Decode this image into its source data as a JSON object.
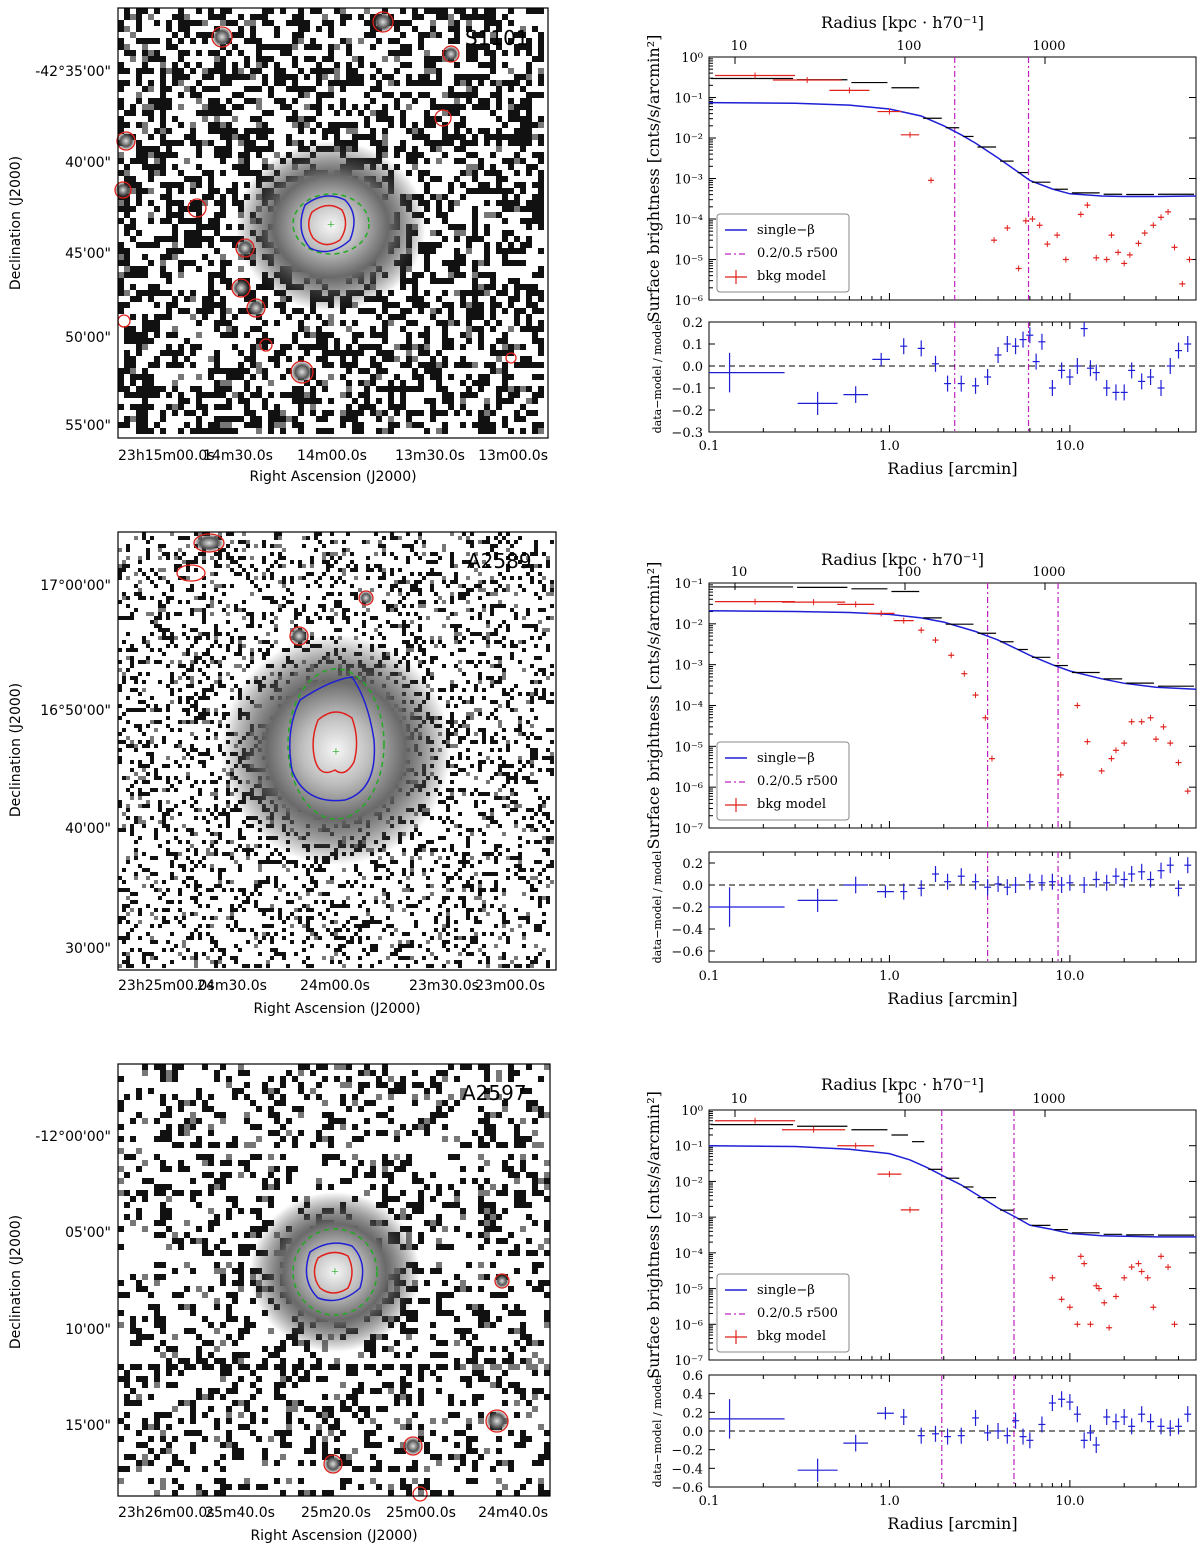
{
  "panels": [
    {
      "image": {
        "label": "S1101",
        "xlabel": "Right Ascension (J2000)",
        "ylabel": "Declination (J2000)",
        "xticks": [
          "23h15m00.0s",
          "14m30.0s",
          "14m00.0s",
          "13m30.0s",
          "13m00.0s"
        ],
        "yticks": [
          "-42°35'00\"",
          "40'00\"",
          "45'00\"",
          "50'00\"",
          "55'00\""
        ]
      },
      "profile": {
        "top_xlabel": "Radius [kpc · h70⁻¹]",
        "top_ticks": [
          "10",
          "100",
          "1000"
        ],
        "ylabel": "Surface brightness [cnts/s/arcmin²]",
        "yticks": [
          "10⁰",
          "10⁻¹",
          "10⁻²",
          "10⁻³",
          "10⁻⁴",
          "10⁻⁵",
          "10⁻⁶"
        ],
        "legend": [
          "single−β",
          "0.2/0.5 r500",
          "bkg model"
        ]
      },
      "residual": {
        "ylabel": "data−model / model",
        "xlabel": "Radius [arcmin]",
        "xticks": [
          "0.1",
          "1.0",
          "10.0"
        ],
        "yticks": [
          "0.2",
          "0.1",
          "0.0",
          "−0.1",
          "−0.2",
          "−0.3"
        ]
      }
    },
    {
      "image": {
        "label": "A2589",
        "xlabel": "Right Ascension (J2000)",
        "ylabel": "Declination (J2000)",
        "xticks": [
          "23h25m00.0s",
          "24m30.0s",
          "24m00.0s",
          "23m30.0s",
          "23m00.0s"
        ],
        "yticks": [
          "17°00'00\"",
          "16°50'00\"",
          "40'00\"",
          "30'00\""
        ]
      },
      "profile": {
        "top_xlabel": "Radius [kpc · h70⁻¹]",
        "top_ticks": [
          "10",
          "100",
          "1000"
        ],
        "ylabel": "Surface brightness [cnts/s/arcmin²]",
        "yticks": [
          "10⁻¹",
          "10⁻²",
          "10⁻³",
          "10⁻⁴",
          "10⁻⁵",
          "10⁻⁶",
          "10⁻⁷"
        ],
        "legend": [
          "single−β",
          "0.2/0.5 r500",
          "bkg model"
        ]
      },
      "residual": {
        "ylabel": "data−model / model",
        "xlabel": "Radius [arcmin]",
        "xticks": [
          "0.1",
          "1.0",
          "10.0"
        ],
        "yticks": [
          "0.2",
          "0.0",
          "−0.2",
          "−0.4",
          "−0.6"
        ]
      }
    },
    {
      "image": {
        "label": "A2597",
        "xlabel": "Right Ascension (J2000)",
        "ylabel": "Declination (J2000)",
        "xticks": [
          "23h26m00.0s",
          "25m40.0s",
          "25m20.0s",
          "25m00.0s",
          "24m40.0s"
        ],
        "yticks": [
          "-12°00'00\"",
          "05'00\"",
          "10'00\"",
          "15'00\""
        ]
      },
      "profile": {
        "top_xlabel": "Radius [kpc · h70⁻¹]",
        "top_ticks": [
          "10",
          "100",
          "1000"
        ],
        "ylabel": "Surface brightness [cnts/s/arcmin²]",
        "yticks": [
          "10⁰",
          "10⁻¹",
          "10⁻²",
          "10⁻³",
          "10⁻⁴",
          "10⁻⁵",
          "10⁻⁶",
          "10⁻⁷"
        ],
        "legend": [
          "single−β",
          "0.2/0.5 r500",
          "bkg model"
        ]
      },
      "residual": {
        "ylabel": "data−model / model",
        "xlabel": "Radius [arcmin]",
        "xticks": [
          "0.1",
          "1.0",
          "10.0"
        ],
        "yticks": [
          "0.6",
          "0.4",
          "0.2",
          "0.0",
          "−0.2",
          "−0.4",
          "−0.6"
        ]
      }
    }
  ],
  "colors": {
    "model": "#1f1fd6",
    "data": "#000000",
    "background": "#e0201b",
    "r500": "#c020c0",
    "residual": "#1f1fd6",
    "contour_green": "#22aa22"
  },
  "chart_data": [
    {
      "type": "line",
      "cluster": "S1101",
      "xscale": "log",
      "yscale": "log",
      "xlim": [
        0.1,
        50
      ],
      "ylim": [
        1e-06,
        1
      ],
      "r500_lines": [
        2.3,
        5.9
      ],
      "series": [
        {
          "name": "single−β",
          "x": [
            0.1,
            0.3,
            0.6,
            1.0,
            1.5,
            2.0,
            2.5,
            3.0,
            4.0,
            5.0,
            6.0,
            8.0,
            10,
            15,
            20,
            30,
            50
          ],
          "y": [
            0.075,
            0.072,
            0.065,
            0.052,
            0.035,
            0.02,
            0.012,
            0.0075,
            0.0032,
            0.0016,
            0.0009,
            0.00055,
            0.00042,
            0.00037,
            0.00036,
            0.00036,
            0.00037
          ]
        },
        {
          "name": "bkg model",
          "x": [
            0.18,
            0.35,
            0.6,
            1.0,
            1.3,
            1.7,
            3.8,
            4.5,
            5.2,
            5.7,
            6.2,
            6.8,
            7.5,
            8.5,
            9.5,
            11.5,
            12.5,
            14,
            16,
            17,
            18.5,
            20,
            21.5,
            24,
            26,
            29,
            32,
            35,
            38,
            42,
            46
          ],
          "y": [
            0.35,
            0.27,
            0.15,
            0.045,
            0.012,
            0.0009,
            3e-05,
            6e-05,
            6e-06,
            9e-05,
            0.0001,
            7e-05,
            2.4e-05,
            4e-05,
            1e-05,
            0.00013,
            0.00022,
            1.1e-05,
            1e-05,
            4e-05,
            1.5e-05,
            8e-06,
            1.3e-05,
            2.5e-05,
            4.5e-05,
            7e-05,
            0.00011,
            0.00015,
            2e-05,
            2.5e-06,
            1e-05
          ]
        }
      ],
      "residual": {
        "x": [
          0.13,
          0.4,
          0.65,
          0.9,
          1.2,
          1.5,
          1.8,
          2.1,
          2.5,
          3.0,
          3.5,
          4.0,
          4.5,
          5.0,
          5.5,
          6.0,
          6.5,
          7.0,
          8.0,
          9.0,
          10,
          11,
          12,
          13,
          14,
          16,
          18,
          20,
          22,
          25,
          28,
          32,
          36,
          40,
          45
        ],
        "y": [
          -0.03,
          -0.17,
          -0.13,
          0.03,
          0.09,
          0.08,
          0.01,
          -0.08,
          -0.08,
          -0.09,
          -0.05,
          0.05,
          0.1,
          0.09,
          0.12,
          0.14,
          0.02,
          0.11,
          -0.1,
          -0.02,
          -0.05,
          0.0,
          0.17,
          -0.01,
          -0.03,
          -0.1,
          -0.12,
          -0.12,
          -0.02,
          -0.07,
          -0.05,
          -0.1,
          0.0,
          0.07,
          0.1
        ]
      }
    },
    {
      "type": "line",
      "cluster": "A2589",
      "xscale": "log",
      "yscale": "log",
      "xlim": [
        0.1,
        50
      ],
      "ylim": [
        1e-07,
        0.1
      ],
      "r500_lines": [
        3.5,
        8.6
      ],
      "series": [
        {
          "name": "single−β",
          "x": [
            0.1,
            0.3,
            0.6,
            1.0,
            1.5,
            2.0,
            3.0,
            4.0,
            5.0,
            6.0,
            8.0,
            10,
            15,
            20,
            30,
            50
          ],
          "y": [
            0.021,
            0.02,
            0.019,
            0.017,
            0.014,
            0.011,
            0.0065,
            0.004,
            0.0025,
            0.0017,
            0.001,
            0.0007,
            0.00045,
            0.00035,
            0.00028,
            0.00025
          ]
        },
        {
          "name": "bkg model",
          "x": [
            0.18,
            0.38,
            0.65,
            0.9,
            1.2,
            1.5,
            1.8,
            2.2,
            2.6,
            3.0,
            3.4,
            3.7,
            8.9,
            11,
            12.5,
            15,
            17,
            18,
            20,
            22,
            25,
            28,
            30,
            33,
            36,
            40,
            45
          ],
          "y": [
            0.035,
            0.034,
            0.03,
            0.018,
            0.012,
            0.007,
            0.004,
            0.0017,
            0.0006,
            0.00018,
            5e-05,
            5e-06,
            2e-06,
            0.0001,
            1.3e-05,
            2.5e-06,
            5e-06,
            8e-06,
            1.2e-05,
            4e-05,
            4e-05,
            5e-05,
            1.5e-05,
            3e-05,
            1.2e-05,
            4e-06,
            8e-07
          ]
        }
      ],
      "residual": {
        "x": [
          0.13,
          0.4,
          0.65,
          0.95,
          1.2,
          1.5,
          1.8,
          2.1,
          2.5,
          3.0,
          3.5,
          4.0,
          4.5,
          5.0,
          6.0,
          7.0,
          8.0,
          9.0,
          10,
          12,
          14,
          16,
          18,
          20,
          22,
          25,
          28,
          32,
          36,
          40,
          45
        ],
        "y": [
          -0.2,
          -0.14,
          0.0,
          -0.06,
          -0.06,
          -0.03,
          0.1,
          0.03,
          0.08,
          0.03,
          -0.02,
          0.01,
          -0.02,
          0.0,
          0.03,
          0.02,
          0.03,
          0.0,
          0.02,
          0.0,
          0.05,
          0.02,
          0.08,
          0.05,
          0.1,
          0.12,
          0.05,
          0.13,
          0.18,
          -0.03,
          0.18
        ]
      }
    },
    {
      "type": "line",
      "cluster": "A2597",
      "xscale": "log",
      "yscale": "log",
      "xlim": [
        0.1,
        50
      ],
      "ylim": [
        1e-07,
        1
      ],
      "r500_lines": [
        1.95,
        4.9
      ],
      "series": [
        {
          "name": "single−β",
          "x": [
            0.1,
            0.3,
            0.6,
            1.0,
            1.3,
            1.6,
            2.0,
            2.5,
            3.0,
            4.0,
            5.0,
            6.0,
            8.0,
            10,
            15,
            20,
            30,
            50
          ],
          "y": [
            0.1,
            0.095,
            0.08,
            0.06,
            0.04,
            0.025,
            0.014,
            0.008,
            0.0045,
            0.0018,
            0.001,
            0.0006,
            0.00045,
            0.00035,
            0.0003,
            0.00029,
            0.00028,
            0.00028
          ]
        },
        {
          "name": "bkg model",
          "x": [
            0.18,
            0.38,
            0.65,
            1.0,
            1.3,
            8.0,
            9.0,
            10,
            11,
            11.5,
            12,
            13,
            14,
            14.5,
            15.5,
            16.5,
            18,
            20,
            22,
            24,
            25,
            27,
            29,
            32,
            35,
            38
          ],
          "y": [
            0.5,
            0.28,
            0.1,
            0.016,
            0.0016,
            2e-05,
            5e-06,
            3e-06,
            1e-06,
            8e-05,
            5e-05,
            1e-06,
            1.2e-05,
            1e-05,
            4e-06,
            8e-07,
            6e-06,
            2e-05,
            4e-05,
            5e-05,
            3e-05,
            2e-05,
            3e-06,
            8e-05,
            4e-05,
            1e-06
          ]
        }
      ],
      "residual": {
        "x": [
          0.13,
          0.4,
          0.65,
          0.95,
          1.2,
          1.5,
          1.8,
          2.1,
          2.5,
          3.0,
          3.5,
          4.0,
          4.5,
          5.0,
          5.5,
          6.0,
          7.0,
          8.0,
          9.0,
          10,
          11,
          12,
          13,
          14,
          16,
          18,
          20,
          22,
          25,
          28,
          32,
          36,
          40,
          45
        ],
        "y": [
          0.13,
          -0.42,
          -0.13,
          0.19,
          0.15,
          -0.05,
          -0.03,
          -0.06,
          -0.05,
          0.14,
          -0.02,
          0.0,
          -0.05,
          0.11,
          -0.06,
          -0.1,
          0.07,
          0.3,
          0.34,
          0.31,
          0.18,
          -0.1,
          -0.02,
          -0.15,
          0.15,
          0.1,
          0.15,
          0.05,
          0.18,
          0.1,
          0.05,
          0.03,
          0.05,
          0.18
        ]
      }
    }
  ]
}
